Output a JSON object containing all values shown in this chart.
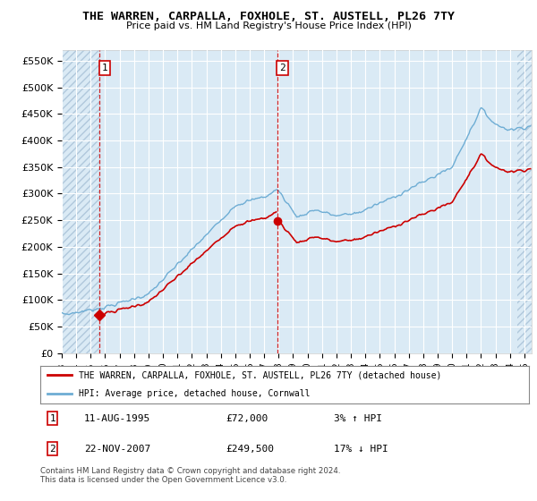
{
  "title": "THE WARREN, CARPALLA, FOXHOLE, ST. AUSTELL, PL26 7TY",
  "subtitle": "Price paid vs. HM Land Registry's House Price Index (HPI)",
  "ylim": [
    0,
    570000
  ],
  "yticks": [
    0,
    50000,
    100000,
    150000,
    200000,
    250000,
    300000,
    350000,
    400000,
    450000,
    500000,
    550000
  ],
  "ytick_labels": [
    "£0",
    "£50K",
    "£100K",
    "£150K",
    "£200K",
    "£250K",
    "£300K",
    "£350K",
    "£400K",
    "£450K",
    "£500K",
    "£550K"
  ],
  "background_color": "#ffffff",
  "plot_bg_color": "#daeaf5",
  "grid_color": "#ffffff",
  "hpi_color": "#6eadd4",
  "price_color": "#cc0000",
  "t1_date": 1995.61,
  "t1_price": 72000,
  "t2_date": 2007.9,
  "t2_price": 249500,
  "legend_entry1": "THE WARREN, CARPALLA, FOXHOLE, ST. AUSTELL, PL26 7TY (detached house)",
  "legend_entry2": "HPI: Average price, detached house, Cornwall",
  "transaction1_date_str": "11-AUG-1995",
  "transaction1_price_str": "£72,000",
  "transaction1_hpi_rel": "3% ↑ HPI",
  "transaction2_date_str": "22-NOV-2007",
  "transaction2_price_str": "£249,500",
  "transaction2_hpi_rel": "17% ↓ HPI",
  "footnote": "Contains HM Land Registry data © Crown copyright and database right 2024.\nThis data is licensed under the Open Government Licence v3.0.",
  "xmin": 1993.0,
  "xmax": 2025.5
}
